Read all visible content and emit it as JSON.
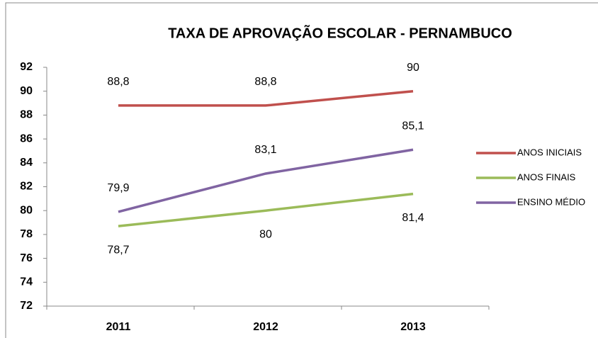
{
  "chart_data": {
    "type": "line",
    "title": "TAXA DE APROVAÇÃO ESCOLAR - PERNAMBUCO",
    "categories": [
      "2011",
      "2012",
      "2013"
    ],
    "series": [
      {
        "name": "ANOS INICIAIS",
        "color": "#c0504d",
        "values": [
          88.8,
          88.8,
          90
        ],
        "value_labels": [
          "88,8",
          "88,8",
          "90"
        ],
        "label_position": "above"
      },
      {
        "name": "ANOS FINAIS",
        "color": "#9bbb59",
        "values": [
          78.7,
          80,
          81.4
        ],
        "value_labels": [
          "78,7",
          "80",
          "81,4"
        ],
        "label_position": "below"
      },
      {
        "name": "ENSINO MÉDIO",
        "color": "#8064a2",
        "values": [
          79.9,
          83.1,
          85.1
        ],
        "value_labels": [
          "79,9",
          "83,1",
          "85,1"
        ],
        "label_position": "above"
      }
    ],
    "ylim": [
      72,
      92
    ],
    "yticks": [
      72,
      74,
      76,
      78,
      80,
      82,
      84,
      86,
      88,
      90,
      92
    ],
    "grid": false,
    "legend": "right"
  }
}
